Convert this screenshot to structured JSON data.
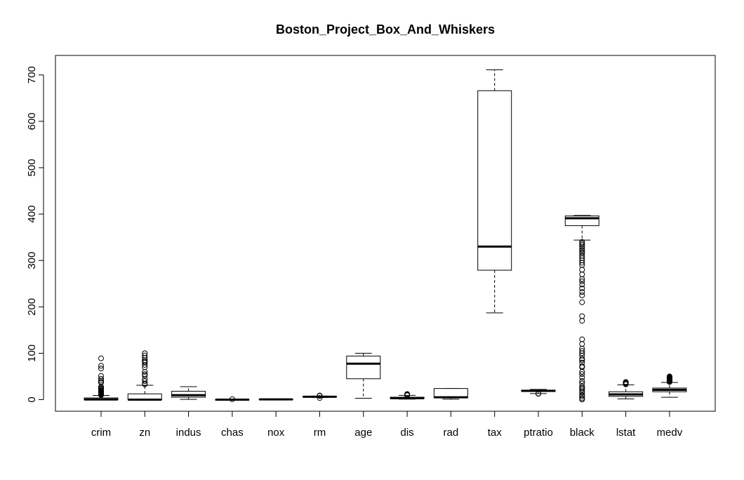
{
  "chart_data": {
    "type": "box",
    "title": "Boston_Project_Box_And_Whiskers",
    "xlabel": "",
    "ylabel": "",
    "ylim": [
      -25,
      742
    ],
    "yticks": [
      0,
      100,
      200,
      300,
      400,
      500,
      600,
      700
    ],
    "grid": false,
    "categories": [
      "crim",
      "zn",
      "indus",
      "chas",
      "nox",
      "rm",
      "age",
      "dis",
      "rad",
      "tax",
      "ptratio",
      "black",
      "lstat",
      "medv"
    ],
    "boxes": [
      {
        "min": 0,
        "q1": 0.1,
        "median": 0.3,
        "q3": 3.7,
        "max": 9,
        "outliers": [
          10,
          11,
          12,
          13,
          14,
          15,
          16,
          17,
          18,
          19,
          20,
          22,
          24,
          25,
          28,
          37,
          38,
          41,
          45,
          51,
          67,
          73,
          89
        ]
      },
      {
        "min": 0,
        "q1": 0,
        "median": 0,
        "q3": 12.5,
        "max": 31,
        "outliers": [
          33,
          35,
          40,
          45,
          52,
          55,
          60,
          70,
          75,
          80,
          82,
          85,
          90,
          95,
          100
        ]
      },
      {
        "min": 0.5,
        "q1": 5.2,
        "median": 9.7,
        "q3": 18.1,
        "max": 28,
        "outliers": []
      },
      {
        "min": 0,
        "q1": 0,
        "median": 0,
        "q3": 0,
        "max": 0,
        "outliers": [
          1
        ]
      },
      {
        "min": 0.4,
        "q1": 0.45,
        "median": 0.54,
        "q3": 0.62,
        "max": 0.87,
        "outliers": []
      },
      {
        "min": 4.7,
        "q1": 5.9,
        "median": 6.2,
        "q3": 6.6,
        "max": 7.7,
        "outliers": [
          3.6,
          8.1,
          8.4,
          8.8
        ]
      },
      {
        "min": 2.9,
        "q1": 45,
        "median": 77.5,
        "q3": 94,
        "max": 100,
        "outliers": []
      },
      {
        "min": 1.1,
        "q1": 2.1,
        "median": 3.2,
        "q3": 5.2,
        "max": 9.2,
        "outliers": [
          9.5,
          10,
          10.6,
          12.1
        ]
      },
      {
        "min": 1,
        "q1": 4,
        "median": 5,
        "q3": 24,
        "max": 24,
        "outliers": []
      },
      {
        "min": 187,
        "q1": 279,
        "median": 330,
        "q3": 666,
        "max": 711,
        "outliers": []
      },
      {
        "min": 13,
        "q1": 17.4,
        "median": 19.1,
        "q3": 20.2,
        "max": 22,
        "outliers": [
          12.6,
          13
        ]
      },
      {
        "min": 344,
        "q1": 375,
        "median": 391,
        "q3": 396,
        "max": 397,
        "outliers": [
          0.3,
          3,
          7,
          10,
          15,
          18,
          22,
          25,
          28,
          35,
          40,
          48,
          55,
          60,
          70,
          72,
          80,
          85,
          88,
          95,
          100,
          105,
          110,
          120,
          130,
          170,
          180,
          210,
          225,
          232,
          240,
          248,
          255,
          260,
          270,
          280,
          290,
          295,
          300,
          305,
          310,
          315,
          318,
          322,
          326,
          330,
          334,
          337,
          340
        ]
      },
      {
        "min": 1.7,
        "q1": 7,
        "median": 11.4,
        "q3": 17,
        "max": 32,
        "outliers": [
          33,
          34.4,
          34.8,
          36,
          36.9,
          38
        ]
      },
      {
        "min": 5,
        "q1": 17,
        "median": 21.2,
        "q3": 25,
        "max": 37,
        "outliers": [
          38,
          39,
          40,
          41,
          42,
          43,
          44,
          45,
          46,
          47,
          48,
          49,
          50
        ]
      }
    ]
  }
}
